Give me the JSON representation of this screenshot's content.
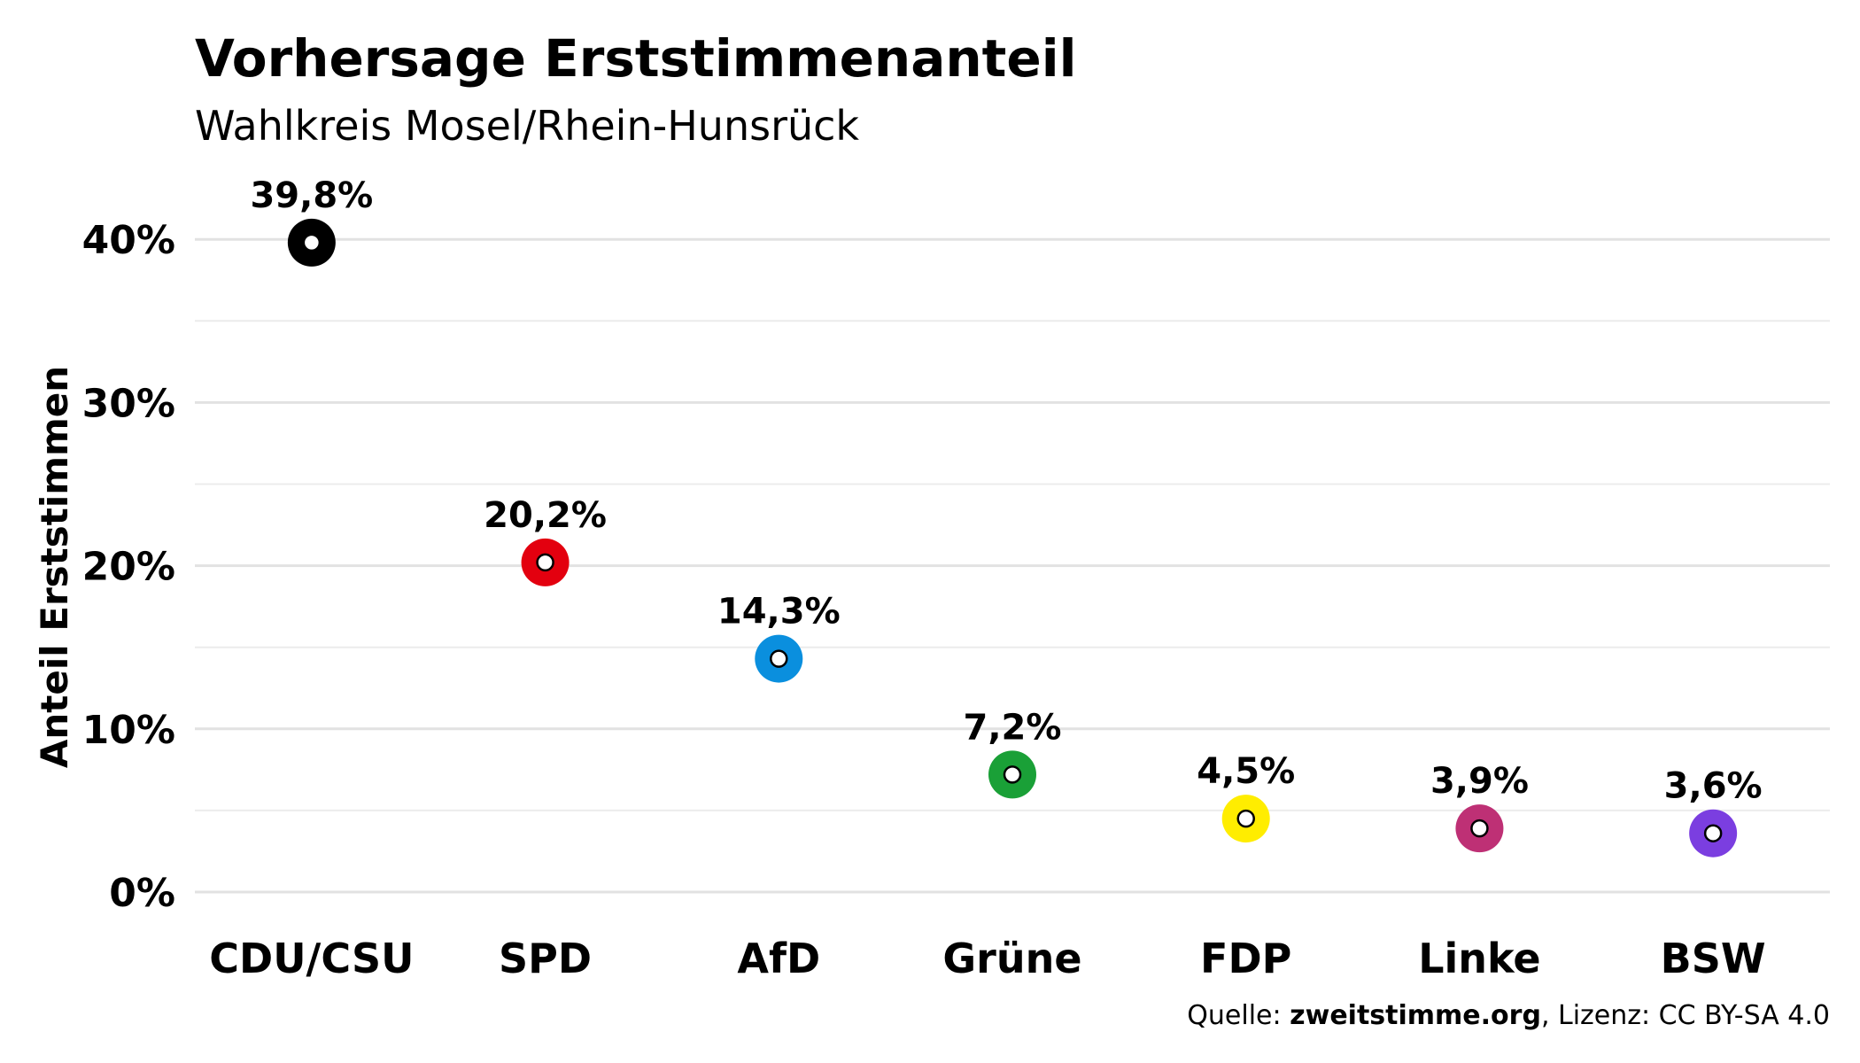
{
  "chart_data": {
    "type": "scatter",
    "title": "Vorhersage Erststimmenanteil",
    "subtitle": "Wahlkreis Mosel/Rhein-Hunsrück",
    "ylabel": "Anteil Erststimmen",
    "xlabel": "",
    "ylim": [
      0,
      42
    ],
    "yticks": [
      {
        "value": 0,
        "label": "0%"
      },
      {
        "value": 10,
        "label": "10%"
      },
      {
        "value": 20,
        "label": "20%"
      },
      {
        "value": 30,
        "label": "30%"
      },
      {
        "value": 40,
        "label": "40%"
      }
    ],
    "minor_gridlines": [
      5,
      15,
      25,
      35
    ],
    "grid": true,
    "categories": [
      "CDU/CSU",
      "SPD",
      "AfD",
      "Grüne",
      "FDP",
      "Linke",
      "BSW"
    ],
    "values": [
      39.8,
      20.2,
      14.3,
      7.2,
      4.5,
      3.9,
      3.6
    ],
    "value_labels": [
      "39,8%",
      "20,2%",
      "14,3%",
      "7,2%",
      "4,5%",
      "3,9%",
      "3,6%"
    ],
    "colors": [
      "#000000",
      "#e3000f",
      "#0a8fde",
      "#1aa037",
      "#ffed00",
      "#be3075",
      "#7b3ee0"
    ]
  },
  "caption": {
    "prefix": "Quelle: ",
    "source": "zweitstimme.org",
    "suffix": ", Lizenz: CC BY-SA 4.0"
  }
}
